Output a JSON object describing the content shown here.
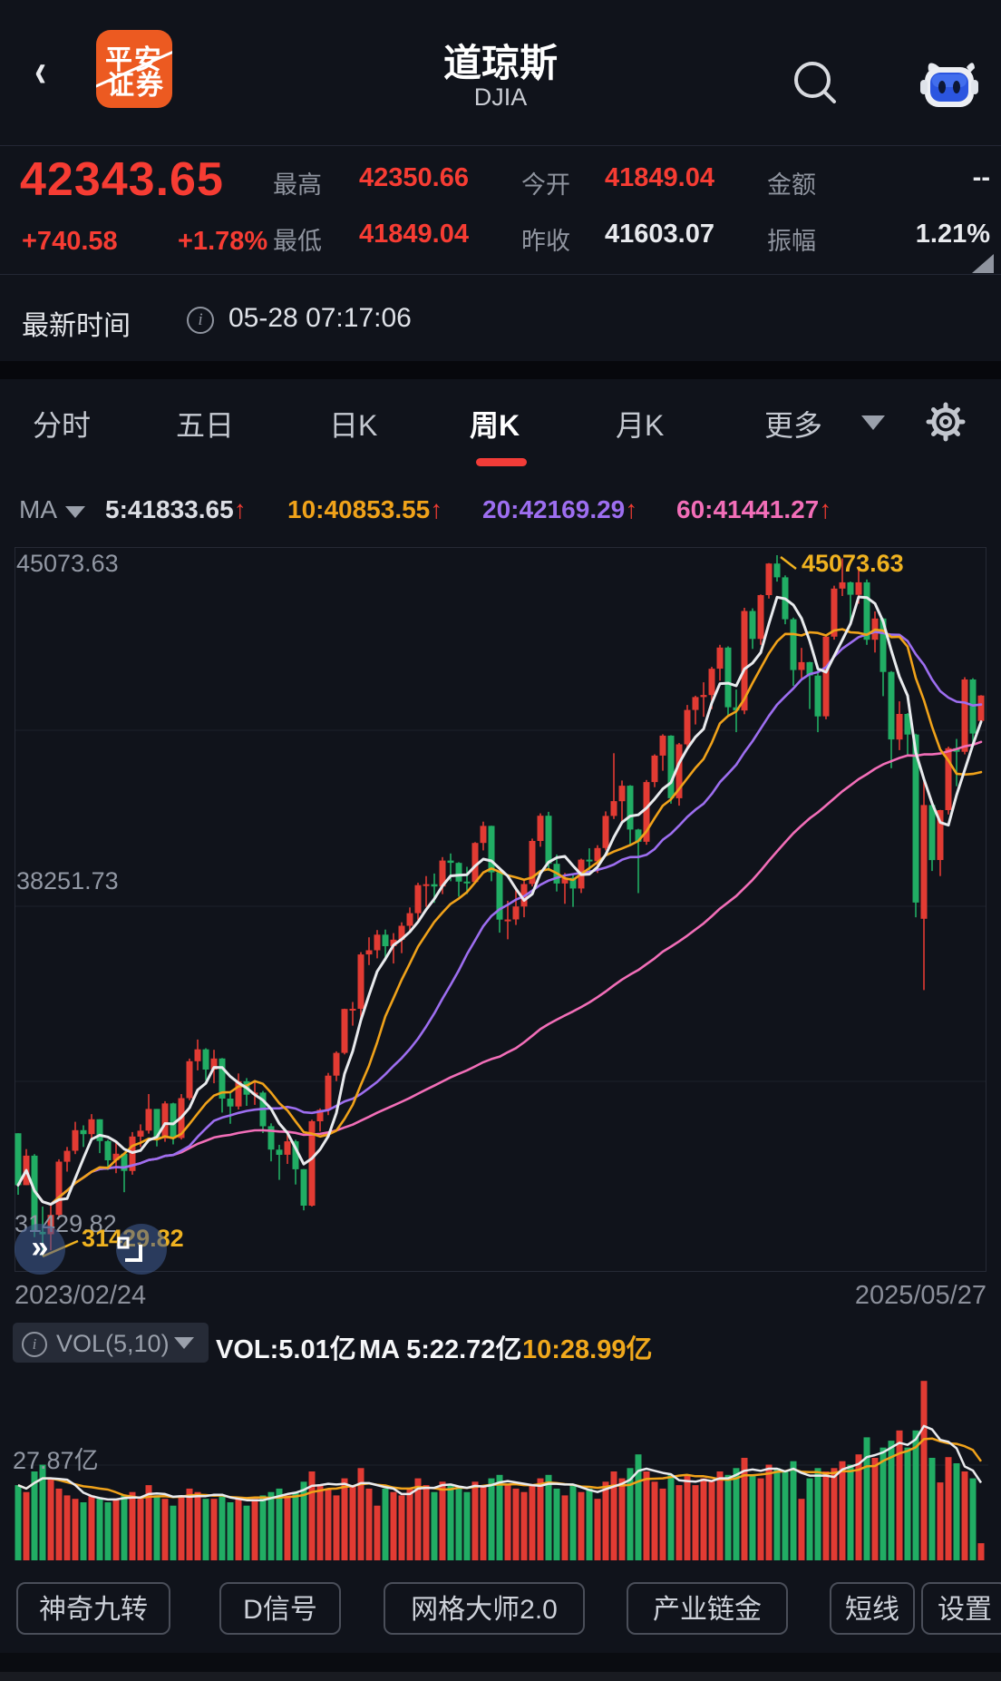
{
  "header": {
    "back": "‹",
    "logo_line1": "平安",
    "logo_line2": "证券",
    "title": "道琼斯",
    "subtitle": "DJIA"
  },
  "quote": {
    "price": "42343.65",
    "change": "+740.58",
    "change_pct": "+1.78%",
    "stats": [
      {
        "label": "最高",
        "value": "42350.66"
      },
      {
        "label": "今开",
        "value": "41849.04"
      },
      {
        "label": "金额",
        "value": "--"
      },
      {
        "label": "最低",
        "value": "41849.04"
      },
      {
        "label": "昨收",
        "value": "41603.07"
      },
      {
        "label": "振幅",
        "value": "1.21%"
      }
    ]
  },
  "time_row": {
    "label": "最新时间",
    "info_icon": "i",
    "value": "05-28 07:17:06"
  },
  "tabs": {
    "items": [
      "分时",
      "五日",
      "日K",
      "周K",
      "月K",
      "更多"
    ],
    "selected": "周K"
  },
  "ma_row": {
    "prefix": "MA",
    "arrow": "↑",
    "items": [
      {
        "text": "5:41833.65"
      },
      {
        "text": "10:40853.55"
      },
      {
        "text": "20:42169.29"
      },
      {
        "text": "60:41441.27"
      }
    ]
  },
  "axis": {
    "top": "45073.63",
    "mid": "38251.73",
    "bottom": "31429.82",
    "high_note": "45073.63",
    "low_note": "31429.82",
    "date_left": "2023/02/24",
    "date_right": "2025/05/27"
  },
  "volume_header": {
    "indicator": "VOL(5,10)",
    "vol_label": "VOL:5.01亿",
    "ma5_label": "MA 5:22.72亿",
    "ma10_label": "10:28.99亿",
    "grid_label": "27.87亿"
  },
  "fab": {
    "collapse": "»"
  },
  "toolbar": {
    "buttons": [
      "神奇九转",
      "D信号",
      "网格大师2.0",
      "产业链金",
      "短线",
      "设置"
    ]
  },
  "colors": {
    "up": "#e23b33",
    "down": "#21ad64",
    "ma5": "#e8eaed",
    "ma10": "#f0a21a",
    "ma20": "#9d6ef0",
    "ma60": "#f26eb8",
    "accent_red": "#f23c38",
    "annotation": "#efb220",
    "grid": "#1d212b",
    "border": "#262a35"
  },
  "chart_data": {
    "type": "candlestick+volume",
    "title": "道琼斯 DJIA 周K",
    "x_start_date": "2023/02/24",
    "x_end_date": "2025/05/27",
    "y_axis_labels": [
      45073.63,
      38251.73,
      31429.82
    ],
    "price_max": 45073.63,
    "price_min": 31429.82,
    "high_annotation": 45073.63,
    "low_annotation": 31429.82,
    "ma_overlays": [
      5,
      10,
      20,
      60
    ],
    "volume_ma_overlays": [
      5,
      10
    ],
    "volume_unit": "亿",
    "volume_scale_max": 55.74,
    "volume_mid_label": 27.87,
    "high_index": 93,
    "low_index": 3,
    "candles": [
      [
        33827,
        33827,
        32630,
        32817,
        22
      ],
      [
        32817,
        33518,
        32817,
        33391,
        20
      ],
      [
        33391,
        33420,
        31805,
        31909,
        26
      ],
      [
        31909,
        32400,
        31429.82,
        31862,
        28
      ],
      [
        31862,
        32418,
        31550,
        32238,
        24
      ],
      [
        32238,
        33320,
        32180,
        33274,
        21
      ],
      [
        33274,
        33560,
        33080,
        33485,
        19
      ],
      [
        33485,
        34050,
        33420,
        33886,
        18
      ],
      [
        33886,
        33980,
        33560,
        33809,
        17
      ],
      [
        33809,
        34200,
        33700,
        34098,
        19
      ],
      [
        34098,
        34100,
        33440,
        33674,
        18
      ],
      [
        33674,
        33700,
        33110,
        33301,
        17
      ],
      [
        33301,
        33650,
        33050,
        33427,
        18
      ],
      [
        33427,
        33450,
        32680,
        33093,
        19
      ],
      [
        33093,
        33850,
        33020,
        33763,
        20
      ],
      [
        33763,
        34000,
        33560,
        33877,
        18
      ],
      [
        33877,
        34590,
        33820,
        34299,
        22
      ],
      [
        34299,
        34300,
        33570,
        33727,
        19
      ],
      [
        33727,
        34450,
        33660,
        34408,
        18
      ],
      [
        34408,
        34420,
        33610,
        33735,
        16
      ],
      [
        33735,
        34590,
        33705,
        34509,
        19
      ],
      [
        34509,
        35280,
        34470,
        35228,
        21
      ],
      [
        35228,
        35650,
        35050,
        35459,
        20
      ],
      [
        35459,
        35480,
        34860,
        35066,
        18
      ],
      [
        35066,
        35450,
        34800,
        35281,
        18
      ],
      [
        35281,
        35290,
        34230,
        34501,
        19
      ],
      [
        34501,
        34650,
        34010,
        34347,
        17
      ],
      [
        34347,
        34990,
        34290,
        34838,
        18
      ],
      [
        34838,
        34900,
        34360,
        34577,
        16
      ],
      [
        34577,
        34860,
        34380,
        34618,
        18
      ],
      [
        34618,
        34650,
        33830,
        33964,
        19
      ],
      [
        33964,
        34020,
        33280,
        33508,
        20
      ],
      [
        33508,
        33600,
        32920,
        33408,
        21
      ],
      [
        33408,
        33860,
        33230,
        33670,
        19
      ],
      [
        33670,
        33700,
        32830,
        33127,
        20
      ],
      [
        33127,
        33130,
        32327,
        32418,
        23
      ],
      [
        32418,
        34090,
        32400,
        34061,
        26
      ],
      [
        34061,
        34310,
        33860,
        34283,
        22
      ],
      [
        34283,
        35000,
        34180,
        34947,
        21
      ],
      [
        34947,
        35420,
        34840,
        35390,
        19
      ],
      [
        35390,
        36250,
        35360,
        36245,
        24
      ],
      [
        36245,
        36380,
        35920,
        36248,
        22
      ],
      [
        36248,
        37350,
        35990,
        37305,
        27
      ],
      [
        37305,
        37640,
        37100,
        37386,
        21
      ],
      [
        37386,
        37780,
        37230,
        37690,
        16
      ],
      [
        37690,
        37790,
        37180,
        37466,
        21
      ],
      [
        37466,
        37720,
        37130,
        37593,
        20
      ],
      [
        37593,
        37930,
        37330,
        37864,
        19
      ],
      [
        37864,
        38220,
        37760,
        38109,
        21
      ],
      [
        38109,
        38700,
        37980,
        38654,
        24
      ],
      [
        38654,
        38830,
        38230,
        38672,
        22
      ],
      [
        38672,
        38880,
        38310,
        38628,
        20
      ],
      [
        38628,
        39200,
        38480,
        39132,
        23
      ],
      [
        39132,
        39270,
        38730,
        39087,
        22
      ],
      [
        39087,
        39100,
        38430,
        38723,
        21
      ],
      [
        38723,
        39010,
        38480,
        38715,
        20
      ],
      [
        38715,
        39490,
        38690,
        39475,
        23
      ],
      [
        39475,
        39890,
        39330,
        39807,
        22
      ],
      [
        39807,
        39810,
        38730,
        38904,
        24
      ],
      [
        38904,
        38920,
        37730,
        37983,
        25
      ],
      [
        37983,
        38350,
        37600,
        37986,
        22
      ],
      [
        37986,
        38560,
        37880,
        38239,
        21
      ],
      [
        38239,
        38750,
        38030,
        38676,
        20
      ],
      [
        38676,
        39560,
        38630,
        39513,
        22
      ],
      [
        39513,
        40051,
        39400,
        40004,
        24
      ],
      [
        40004,
        40080,
        38930,
        39069,
        25
      ],
      [
        39069,
        39250,
        38530,
        38686,
        21
      ],
      [
        38686,
        38890,
        38290,
        38799,
        19
      ],
      [
        38799,
        38850,
        38230,
        38589,
        22
      ],
      [
        38589,
        39170,
        38500,
        39150,
        20
      ],
      [
        39150,
        39370,
        38910,
        39119,
        21
      ],
      [
        39119,
        39430,
        38890,
        39376,
        18
      ],
      [
        39376,
        40090,
        39330,
        40001,
        23
      ],
      [
        40001,
        41220,
        39940,
        40288,
        26
      ],
      [
        40288,
        40690,
        39860,
        40589,
        24
      ],
      [
        40589,
        40600,
        39430,
        39737,
        27
      ],
      [
        39737,
        39750,
        38499,
        39498,
        31
      ],
      [
        39498,
        40700,
        39440,
        40660,
        26
      ],
      [
        40660,
        41200,
        40560,
        41175,
        23
      ],
      [
        41175,
        41590,
        40880,
        41563,
        21
      ],
      [
        41563,
        41570,
        40240,
        40346,
        25
      ],
      [
        40346,
        41420,
        40200,
        41394,
        22
      ],
      [
        41394,
        42160,
        41330,
        42063,
        25
      ],
      [
        42063,
        42340,
        41780,
        42313,
        22
      ],
      [
        42313,
        42600,
        41930,
        42353,
        24
      ],
      [
        42353,
        42900,
        42080,
        42864,
        23
      ],
      [
        42864,
        43330,
        42630,
        43276,
        26
      ],
      [
        43276,
        43300,
        41940,
        42114,
        25
      ],
      [
        42114,
        42460,
        41630,
        42052,
        27
      ],
      [
        42052,
        44050,
        41980,
        43989,
        30
      ],
      [
        43989,
        44040,
        43250,
        43445,
        25
      ],
      [
        43445,
        44310,
        43330,
        44297,
        24
      ],
      [
        44297,
        44920,
        44230,
        44911,
        28
      ],
      [
        44911,
        45073.63,
        44560,
        44643,
        27
      ],
      [
        44643,
        44680,
        43730,
        43828,
        26
      ],
      [
        43828,
        43860,
        42530,
        42840,
        29
      ],
      [
        42840,
        43270,
        42680,
        42992,
        18
      ],
      [
        42992,
        43000,
        42080,
        42732,
        24
      ],
      [
        42732,
        42850,
        41630,
        41938,
        27
      ],
      [
        41938,
        43520,
        41880,
        43488,
        26
      ],
      [
        43488,
        44480,
        43430,
        44424,
        27
      ],
      [
        44424,
        45010,
        44280,
        44545,
        29
      ],
      [
        44545,
        44560,
        43780,
        44303,
        28
      ],
      [
        44303,
        44860,
        44130,
        44546,
        31
      ],
      [
        44546,
        44600,
        43330,
        43428,
        36
      ],
      [
        43428,
        43980,
        43180,
        43841,
        30
      ],
      [
        43841,
        43850,
        42330,
        42802,
        33
      ],
      [
        42802,
        42820,
        40930,
        41488,
        35
      ],
      [
        41488,
        42230,
        41280,
        41985,
        38
      ],
      [
        41985,
        42000,
        41180,
        41584,
        33
      ],
      [
        41584,
        41600,
        38030,
        38315,
        38
      ],
      [
        38000,
        40750,
        36611.9,
        40213,
        52.5
      ],
      [
        40213,
        40290,
        38930,
        39142,
        30
      ],
      [
        39142,
        40120,
        38830,
        40113,
        22.8
      ],
      [
        40113,
        41350,
        40030,
        41317,
        30.2
      ],
      [
        41317,
        41500,
        40580,
        41249,
        28.4
      ],
      [
        41249,
        42700,
        41200,
        42655,
        26
      ],
      [
        42655,
        42680,
        41400,
        41603.07,
        23.99
      ],
      [
        41849.04,
        42350.66,
        41849.04,
        42343.65,
        5.01
      ]
    ]
  }
}
